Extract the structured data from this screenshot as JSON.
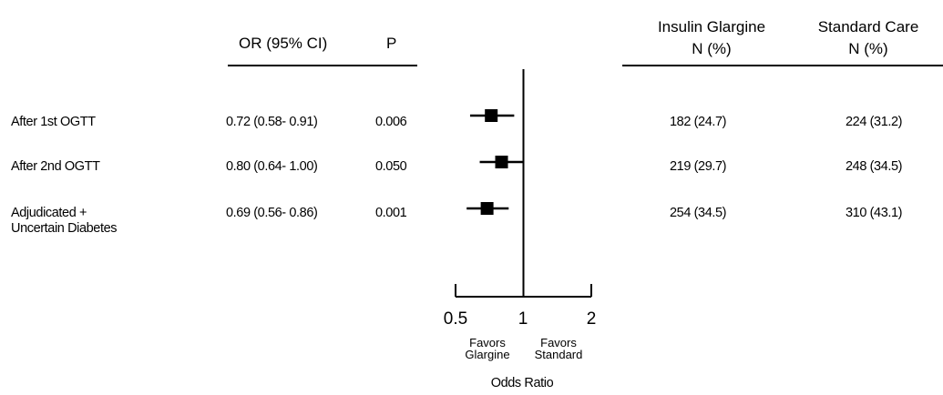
{
  "chart_data": {
    "type": "forest",
    "header": {
      "or_col": "OR (95% CI)",
      "p_col": "P",
      "group1": "Insulin Glargine",
      "group1_sub": "N (%)",
      "group2": "Standard Care",
      "group2_sub": "N (%)"
    },
    "rows": [
      {
        "label": [
          "After 1st OGTT"
        ],
        "or": 0.72,
        "lo": 0.58,
        "hi": 0.91,
        "or_text": "0.72 (0.58- 0.91)",
        "p": "0.006",
        "g1": "182 (24.7)",
        "g2": "224 (31.2)"
      },
      {
        "label": [
          "After 2nd OGTT"
        ],
        "or": 0.8,
        "lo": 0.64,
        "hi": 1.0,
        "or_text": "0.80 (0.64- 1.00)",
        "p": "0.050",
        "g1": "219 (29.7)",
        "g2": "248 (34.5)"
      },
      {
        "label": [
          "Adjudicated +",
          "Uncertain Diabetes"
        ],
        "or": 0.69,
        "lo": 0.56,
        "hi": 0.86,
        "or_text": "0.69 (0.56- 0.86)",
        "p": "0.001",
        "g1": "254 (34.5)",
        "g2": "310 (43.1)"
      }
    ],
    "x_scale": "log",
    "xlim": [
      0.5,
      2
    ],
    "ticks": [
      {
        "value": 0.5,
        "label": "0.5"
      },
      {
        "value": 1,
        "label": "1"
      },
      {
        "value": 2,
        "label": "2"
      }
    ],
    "reference": 1,
    "favors_left": [
      "Favors",
      "Glargine"
    ],
    "favors_right": [
      "Favors",
      "Standard"
    ],
    "xlabel": "Odds Ratio"
  }
}
